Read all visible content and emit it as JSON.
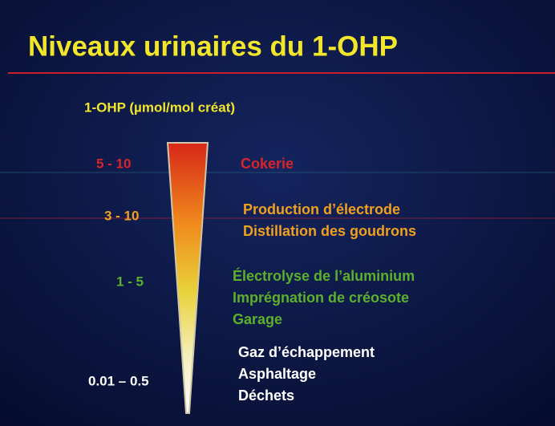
{
  "title": "Niveaux urinaires du 1-OHP",
  "subtitle": "1-OHP (µmol/mol créat)",
  "levels": [
    {
      "range": "5 - 10",
      "sources": [
        "Cokerie"
      ]
    },
    {
      "range": "3 - 10",
      "sources": [
        "Production d’électrode",
        "Distillation des goudrons"
      ]
    },
    {
      "range": "1 - 5",
      "sources": [
        "Électrolyse de l’aluminium",
        "Imprégnation de créosote",
        "Garage"
      ]
    },
    {
      "range": "0.01 – 0.5",
      "sources": [
        "Gaz d’échappement",
        "Asphaltage",
        "Déchets"
      ]
    }
  ]
}
